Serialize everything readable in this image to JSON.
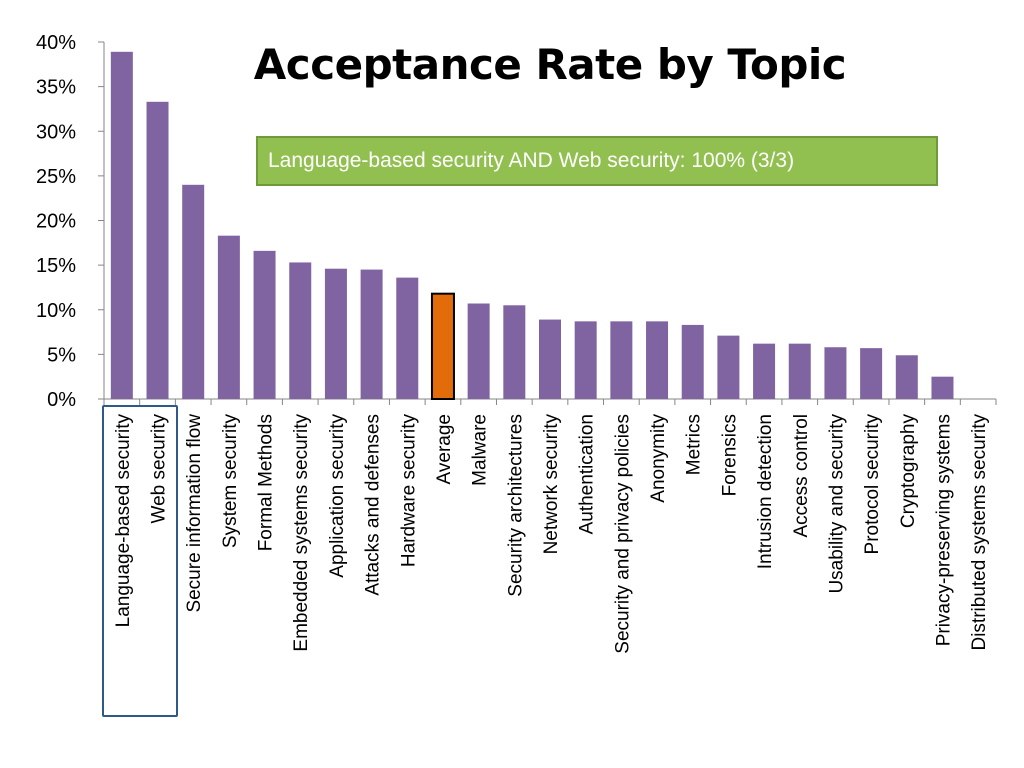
{
  "chart_data": {
    "type": "bar",
    "title": "Acceptance Rate by Topic",
    "annotation": "Language-based security AND Web security: 100% (3/3)",
    "ylim": [
      0,
      40
    ],
    "yticks": [
      "0%",
      "5%",
      "10%",
      "15%",
      "20%",
      "25%",
      "30%",
      "35%",
      "40%"
    ],
    "grid": false,
    "bar_color": "#8064a2",
    "highlight_color": "#e36c0a",
    "highlight_category": "Average",
    "categories": [
      "Language-based security",
      "Web security",
      "Secure information flow",
      "System security",
      "Formal Methods",
      "Embedded systems security",
      "Application security",
      "Attacks and defenses",
      "Hardware security",
      "Average",
      "Malware",
      "Security architectures",
      "Network security",
      "Authentication",
      "Security and privacy policies",
      "Anonymity",
      "Metrics",
      "Forensics",
      "Intrusion detection",
      "Access control",
      "Usability and security",
      "Protocol security",
      "Cryptography",
      "Privacy-preserving systems",
      "Distributed systems security"
    ],
    "values": [
      38.9,
      33.3,
      24.0,
      18.3,
      16.6,
      15.3,
      14.6,
      14.5,
      13.6,
      11.8,
      10.7,
      10.5,
      8.9,
      8.7,
      8.7,
      8.7,
      8.3,
      7.1,
      6.2,
      6.2,
      5.8,
      5.7,
      4.9,
      2.5,
      0
    ]
  }
}
